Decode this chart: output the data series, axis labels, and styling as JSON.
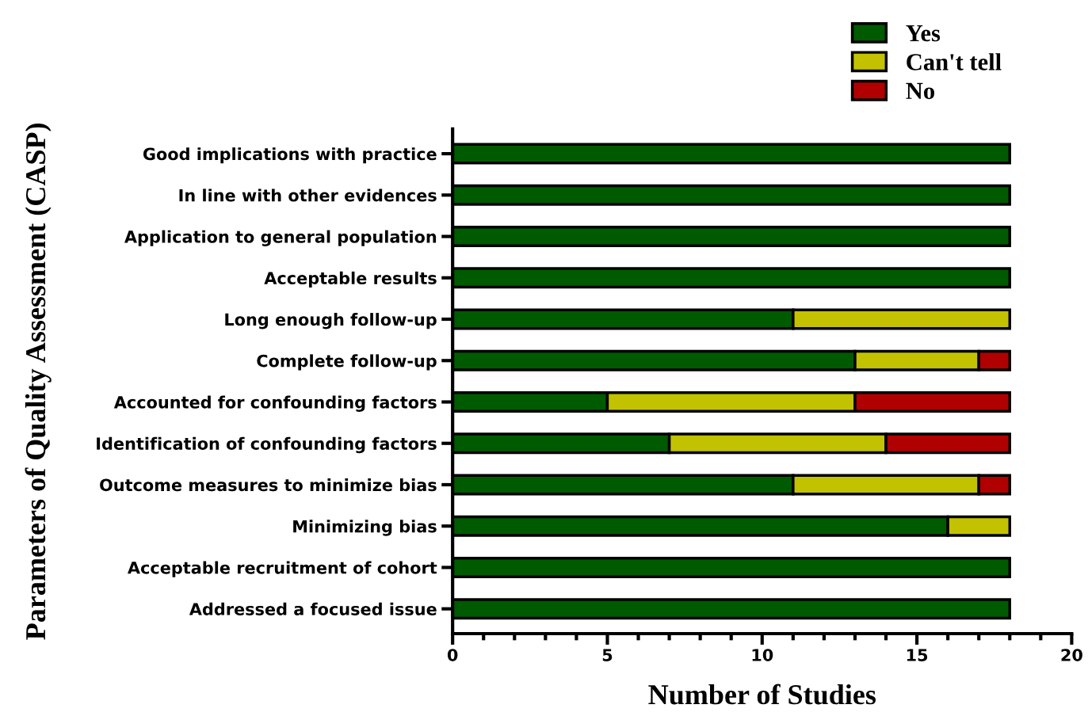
{
  "chart_data": {
    "type": "bar",
    "orientation": "horizontal",
    "stacked": true,
    "xlabel": "Number of Studies",
    "ylabel": "Parameters of Quality Assessment (CASP)",
    "categories": [
      "Good implications with practice",
      "In line with other evidences",
      "Application to general population",
      "Acceptable results",
      "Long enough follow-up",
      "Complete follow-up",
      "Accounted for confounding factors",
      "Identification of confounding factors",
      "Outcome measures to minimize bias",
      "Minimizing bias",
      "Acceptable recruitment of cohort",
      "Addressed a focused issue"
    ],
    "series": [
      {
        "name": "Yes",
        "color": "#005a00",
        "values": [
          18,
          18,
          18,
          18,
          11,
          13,
          5,
          7,
          11,
          16,
          18,
          18
        ]
      },
      {
        "name": "Can't tell",
        "color": "#c2c200",
        "values": [
          0,
          0,
          0,
          0,
          7,
          4,
          8,
          7,
          6,
          2,
          0,
          0
        ]
      },
      {
        "name": "No",
        "color": "#b00000",
        "values": [
          0,
          0,
          0,
          0,
          0,
          1,
          5,
          4,
          1,
          0,
          0,
          0
        ]
      }
    ],
    "xlim": [
      0,
      20
    ],
    "xticks": [
      0,
      5,
      10,
      15,
      20
    ],
    "grid": false,
    "legend": "top right"
  }
}
